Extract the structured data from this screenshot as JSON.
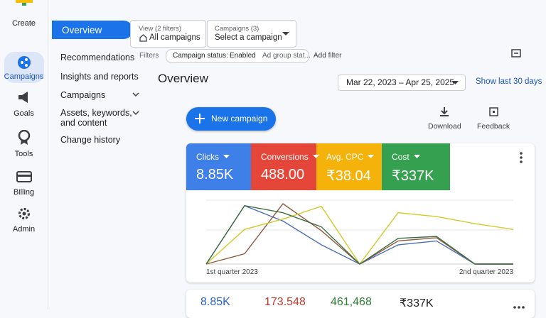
{
  "nav_rail": [
    "Create",
    "Campaigns",
    "Goals",
    "Tools",
    "Billing",
    "Admin"
  ],
  "side_nav": {
    "active": "Overview",
    "items": [
      "Recommendations",
      "Insights and reports",
      "Campaigns",
      "Assets, keywords,",
      "and content",
      "Change history"
    ]
  },
  "view_selector": {
    "label": "View (2 filters)",
    "value": "All campaigns"
  },
  "campaign_selector": {
    "label": "Campaigns (3)",
    "value": "Select a campaign"
  },
  "filters": {
    "label": "Filters",
    "status_key": "Campaign status:",
    "status_value": "Enabled",
    "more": "Ad group stat...",
    "add": "Add filter"
  },
  "page_title": "Overview",
  "date_range": "Mar 22, 2023 – Apr 25, 2025",
  "show_last": "Show last 30 days",
  "actions": {
    "new_campaign": "New campaign",
    "download": "Download",
    "feedback": "Feedback"
  },
  "metrics": [
    {
      "name": "Clicks",
      "value": "8.85K",
      "color": "#3f7fe8"
    },
    {
      "name": "Conversions",
      "value": "488.00",
      "color": "#e5463a"
    },
    {
      "name": "Avg. CPC",
      "value": "₹38.04",
      "color": "#f5b20a"
    },
    {
      "name": "Cost",
      "value": "₹337K",
      "color": "#35a04f"
    }
  ],
  "chart_data": {
    "type": "line",
    "categories": [
      "1st quarter 2023",
      null,
      null,
      null,
      null,
      null,
      null,
      null,
      "2nd quarter 2023"
    ],
    "series": [
      {
        "name": "Clicks",
        "color": "#4a6fb8",
        "values": [
          0,
          91,
          67,
          30,
          0,
          30,
          36,
          0,
          0
        ]
      },
      {
        "name": "Conversions",
        "color": "#8e5a3e",
        "values": [
          0,
          16,
          94,
          52,
          0,
          36,
          41,
          0,
          0
        ]
      },
      {
        "name": "Avg. CPC",
        "color": "#d3cb2c",
        "values": [
          0,
          54,
          70,
          90,
          0,
          80,
          74,
          63,
          54
        ]
      },
      {
        "name": "Cost",
        "color": "#3d6e45",
        "values": [
          0,
          91,
          80,
          58,
          0,
          40,
          43,
          0,
          0
        ]
      }
    ]
  },
  "summary": [
    {
      "value": "8.85K",
      "color": "#2a62c9"
    },
    {
      "value": "173.548",
      "color": "#c0392b"
    },
    {
      "value": "461,468",
      "color": "#2e7d32"
    },
    {
      "value": "₹337K",
      "color": "#202124"
    }
  ]
}
